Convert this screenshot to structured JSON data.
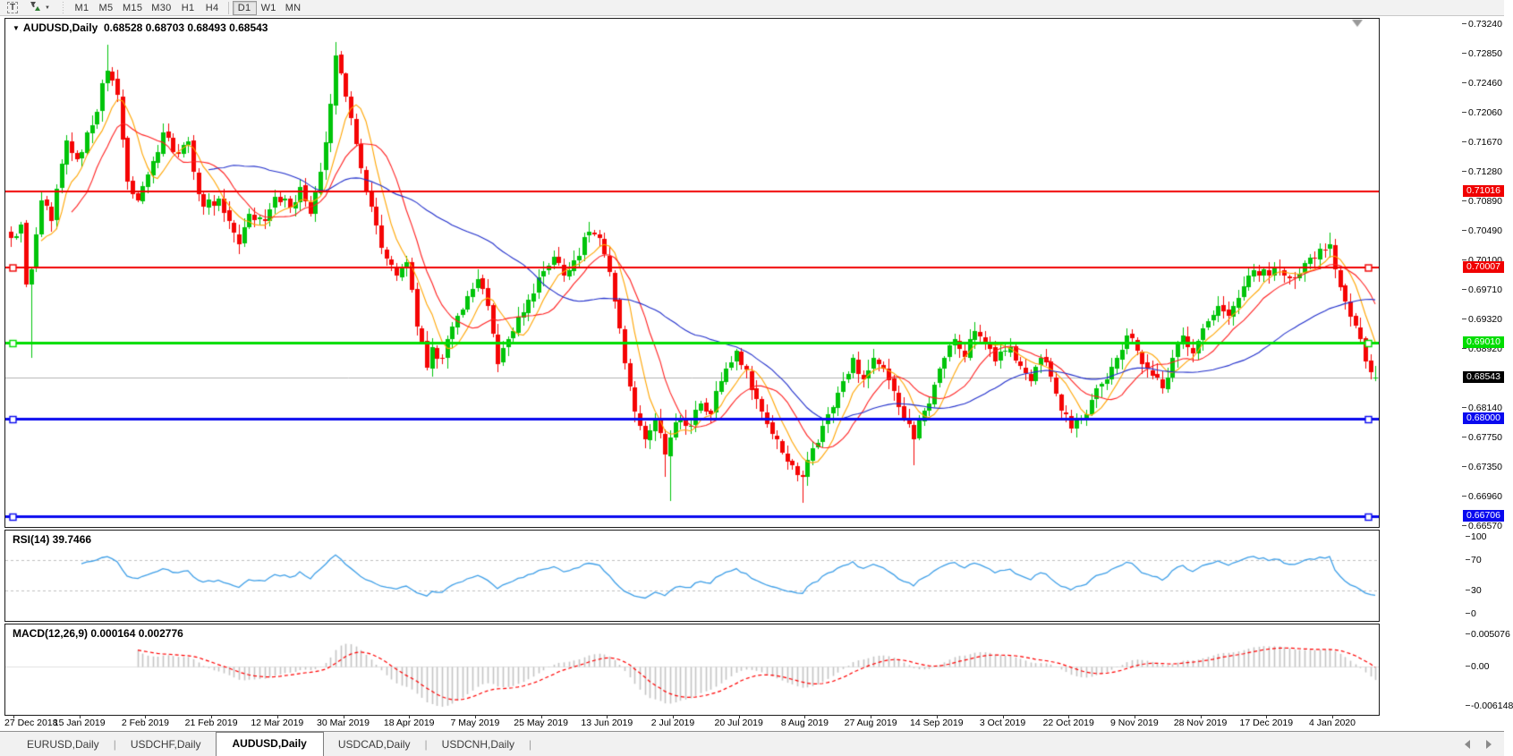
{
  "toolbar": {
    "text_tool_label": "T",
    "dropdown_caret": "▼",
    "timeframes": [
      "M1",
      "M5",
      "M15",
      "M30",
      "H1",
      "H4",
      "D1",
      "W1",
      "MN"
    ],
    "active_timeframe": "D1"
  },
  "chart_header": {
    "marker": "▼",
    "symbol": "AUDUSD,Daily",
    "ohlc": "0.68528 0.68703 0.68493 0.68543"
  },
  "chart_data": {
    "type": "candlestick",
    "symbol": "AUDUSD",
    "timeframe": "Daily",
    "title": "AUDUSD,Daily",
    "last_candle": {
      "open": 0.68528,
      "high": 0.68703,
      "low": 0.68493,
      "close": 0.68543
    },
    "n_candles": 270,
    "ylim": [
      0.66558,
      0.73311
    ],
    "y_ticks": [
      "0.73240",
      "0.72850",
      "0.72460",
      "0.72060",
      "0.71670",
      "0.71280",
      "0.70890",
      "0.70490",
      "0.70100",
      "0.69710",
      "0.69320",
      "0.68920",
      "0.68140",
      "0.67750",
      "0.67350",
      "0.66960",
      "0.66570"
    ],
    "x_labels": [
      "27 Dec 2018",
      "15 Jan 2019",
      "2 Feb 2019",
      "21 Feb 2019",
      "12 Mar 2019",
      "30 Mar 2019",
      "18 Apr 2019",
      "7 May 2019",
      "25 May 2019",
      "13 Jun 2019",
      "2 Jul 2019",
      "20 Jul 2019",
      "8 Aug 2019",
      "27 Aug 2019",
      "14 Sep 2019",
      "3 Oct 2019",
      "22 Oct 2019",
      "9 Nov 2019",
      "28 Nov 2019",
      "17 Dec 2019",
      "4 Jan 2020"
    ],
    "candle_colors": {
      "bull": "#00C40A",
      "bear": "#F50505"
    },
    "close_anchors": [
      [
        0,
        0.704
      ],
      [
        2,
        0.7058
      ],
      [
        3,
        0.6978
      ],
      [
        4,
        0.6998
      ],
      [
        6,
        0.709
      ],
      [
        8,
        0.7062
      ],
      [
        11,
        0.717
      ],
      [
        13,
        0.7145
      ],
      [
        16,
        0.719
      ],
      [
        19,
        0.7262
      ],
      [
        21,
        0.723
      ],
      [
        23,
        0.7115
      ],
      [
        25,
        0.709
      ],
      [
        28,
        0.7142
      ],
      [
        30,
        0.718
      ],
      [
        33,
        0.7152
      ],
      [
        35,
        0.7168
      ],
      [
        36,
        0.7128
      ],
      [
        38,
        0.7082
      ],
      [
        41,
        0.7092
      ],
      [
        43,
        0.7062
      ],
      [
        45,
        0.7032
      ],
      [
        47,
        0.7072
      ],
      [
        50,
        0.7062
      ],
      [
        52,
        0.7095
      ],
      [
        55,
        0.708
      ],
      [
        57,
        0.7108
      ],
      [
        59,
        0.7072
      ],
      [
        61,
        0.7128
      ],
      [
        63,
        0.7218
      ],
      [
        64,
        0.7282
      ],
      [
        66,
        0.7228
      ],
      [
        68,
        0.7165
      ],
      [
        70,
        0.71
      ],
      [
        72,
        0.7056
      ],
      [
        74,
        0.7012
      ],
      [
        76,
        0.699
      ],
      [
        78,
        0.7008
      ],
      [
        80,
        0.6922
      ],
      [
        82,
        0.6868
      ],
      [
        83,
        0.6895
      ],
      [
        85,
        0.688
      ],
      [
        87,
        0.6922
      ],
      [
        89,
        0.6945
      ],
      [
        92,
        0.6985
      ],
      [
        94,
        0.695
      ],
      [
        96,
        0.6872
      ],
      [
        98,
        0.6905
      ],
      [
        100,
        0.6935
      ],
      [
        102,
        0.6958
      ],
      [
        104,
        0.6988
      ],
      [
        107,
        0.7015
      ],
      [
        109,
        0.699
      ],
      [
        111,
        0.701
      ],
      [
        114,
        0.7048
      ],
      [
        116,
        0.704
      ],
      [
        118,
        0.6995
      ],
      [
        120,
        0.692
      ],
      [
        122,
        0.6842
      ],
      [
        124,
        0.679
      ],
      [
        125,
        0.6772
      ],
      [
        127,
        0.68
      ],
      [
        129,
        0.6752
      ],
      [
        130,
        0.6775
      ],
      [
        132,
        0.68
      ],
      [
        134,
        0.679
      ],
      [
        136,
        0.682
      ],
      [
        138,
        0.6806
      ],
      [
        139,
        0.6836
      ],
      [
        142,
        0.6875
      ],
      [
        143,
        0.689
      ],
      [
        145,
        0.6865
      ],
      [
        147,
        0.6826
      ],
      [
        149,
        0.6792
      ],
      [
        151,
        0.6772
      ],
      [
        153,
        0.6742
      ],
      [
        156,
        0.6722
      ],
      [
        158,
        0.676
      ],
      [
        160,
        0.679
      ],
      [
        162,
        0.6815
      ],
      [
        164,
        0.685
      ],
      [
        166,
        0.688
      ],
      [
        168,
        0.6852
      ],
      [
        170,
        0.688
      ],
      [
        172,
        0.6866
      ],
      [
        174,
        0.6836
      ],
      [
        176,
        0.68
      ],
      [
        178,
        0.6772
      ],
      [
        180,
        0.681
      ],
      [
        182,
        0.6845
      ],
      [
        184,
        0.688
      ],
      [
        186,
        0.6905
      ],
      [
        188,
        0.6882
      ],
      [
        190,
        0.6916
      ],
      [
        192,
        0.69
      ],
      [
        194,
        0.6876
      ],
      [
        197,
        0.6895
      ],
      [
        199,
        0.687
      ],
      [
        201,
        0.685
      ],
      [
        203,
        0.688
      ],
      [
        205,
        0.6856
      ],
      [
        207,
        0.681
      ],
      [
        209,
        0.6786
      ],
      [
        211,
        0.68
      ],
      [
        213,
        0.6825
      ],
      [
        215,
        0.6846
      ],
      [
        218,
        0.688
      ],
      [
        220,
        0.691
      ],
      [
        222,
        0.689
      ],
      [
        224,
        0.6866
      ],
      [
        227,
        0.684
      ],
      [
        229,
        0.688
      ],
      [
        231,
        0.691
      ],
      [
        233,
        0.6886
      ],
      [
        235,
        0.692
      ],
      [
        238,
        0.695
      ],
      [
        240,
        0.6936
      ],
      [
        242,
        0.696
      ],
      [
        244,
        0.699
      ],
      [
        246,
        0.699
      ],
      [
        249,
        0.7
      ],
      [
        252,
        0.6986
      ],
      [
        255,
        0.7006
      ],
      [
        258,
        0.7025
      ],
      [
        260,
        0.7032
      ],
      [
        262,
        0.6975
      ],
      [
        264,
        0.6935
      ],
      [
        266,
        0.6905
      ],
      [
        268,
        0.6862
      ],
      [
        269,
        0.68543
      ]
    ],
    "wick_overrides": {
      "lows": [
        [
          4,
          0.688
        ],
        [
          129,
          0.6722
        ],
        [
          130,
          0.669
        ],
        [
          156,
          0.6688
        ],
        [
          178,
          0.6738
        ]
      ],
      "highs": [
        [
          19,
          0.7297
        ],
        [
          64,
          0.73
        ],
        [
          260,
          0.7047
        ]
      ]
    },
    "noise": 0.0016,
    "moving_averages": [
      {
        "period": 7,
        "color": "#FFA500"
      },
      {
        "period": 13,
        "color": "#FF2020"
      },
      {
        "period": 40,
        "color": "#2230CC"
      }
    ],
    "hlines": [
      {
        "price": 0.71016,
        "label": "0.71016",
        "color": "#F00000",
        "width": 2,
        "selected": false
      },
      {
        "price": 0.70007,
        "label": "0.70007",
        "color": "#F00000",
        "width": 2,
        "selected": true
      },
      {
        "price": 0.6901,
        "label": "0.69010",
        "color": "#00DD00",
        "width": 3,
        "selected": true
      },
      {
        "price": 0.68,
        "label": "0.68000",
        "color": "#0909EF",
        "width": 3,
        "selected": true
      },
      {
        "price": 0.66706,
        "label": "0.66706",
        "color": "#0909EF",
        "width": 3,
        "selected": true
      }
    ],
    "current_price": {
      "value": 0.68543,
      "label": "0.68543",
      "line_color": "#B4B4B4",
      "label_bg": "#000000"
    },
    "rsi": {
      "label": "RSI(14) 39.7466",
      "period": 14,
      "value": 39.7466,
      "levels": [
        30,
        70
      ],
      "y_ticks": [
        "100",
        "70",
        "30",
        "0"
      ],
      "color": "#3E9FE8"
    },
    "macd": {
      "label": "MACD(12,26,9) 0.000164 0.002776",
      "params": [
        12,
        26,
        9
      ],
      "values": [
        0.000164,
        0.002776
      ],
      "y_ticks": [
        "0.005076",
        "0.00",
        "-0.006148"
      ],
      "ylim": [
        -0.0076,
        0.0066
      ],
      "hist_color": "#C4C4C4",
      "signal_color": "#FF0000"
    }
  },
  "tab_bar": {
    "tabs": [
      "EURUSD,Daily",
      "USDCHF,Daily",
      "AUDUSD,Daily",
      "USDCAD,Daily",
      "USDCNH,Daily"
    ],
    "active_index": 2
  }
}
